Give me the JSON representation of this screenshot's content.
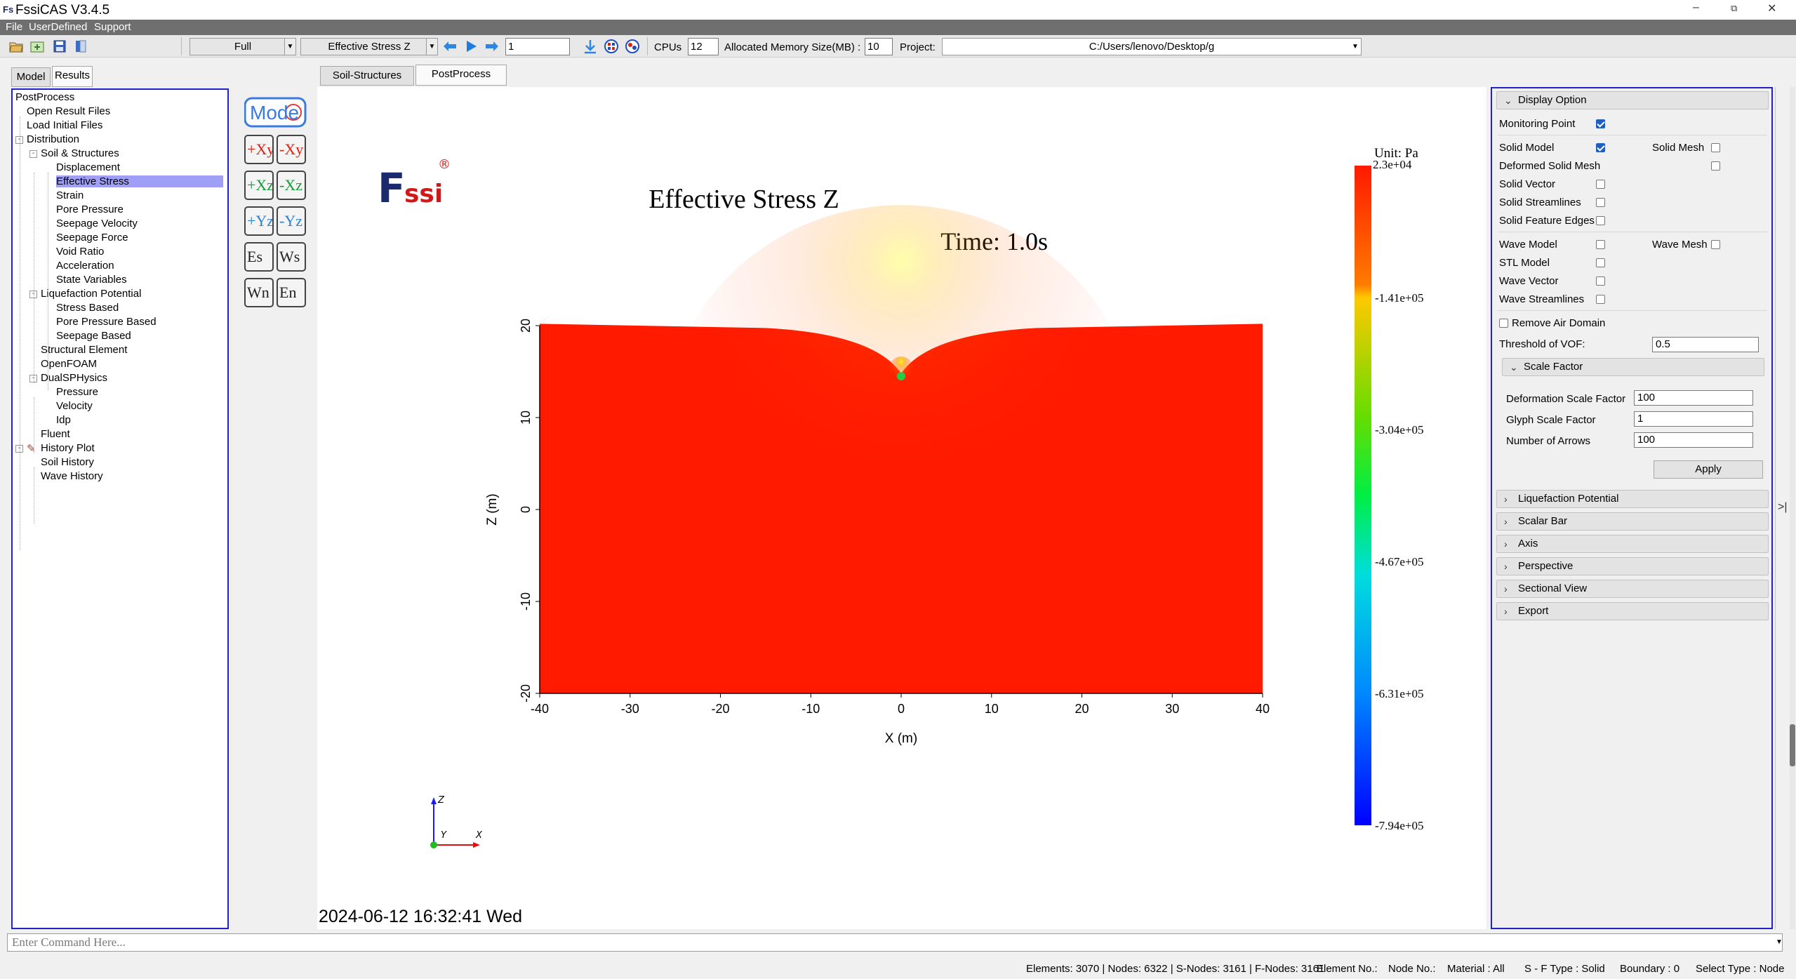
{
  "window": {
    "title": "FssiCAS V3.4.5",
    "app_icon": "Fs"
  },
  "menu": [
    "File",
    "UserDefined",
    "Support"
  ],
  "toolbar": {
    "view_mode": "Full",
    "field": "Effective Stress Z",
    "step": "1",
    "cpus_label": "CPUs",
    "cpus": "12",
    "memory_label": "Allocated Memory Size(MB) :",
    "memory": "10",
    "project_label": "Project:",
    "project_path": "C:/Users/lenovo/Desktop/g"
  },
  "left_tabs": [
    "Model",
    "Results"
  ],
  "main_tabs": [
    "Soil-Structures",
    "PostProcess"
  ],
  "tree": {
    "root": "PostProcess",
    "items": [
      {
        "label": "Open Result Files",
        "level": 1
      },
      {
        "label": "Load Initial Files",
        "level": 1
      },
      {
        "label": "Distribution",
        "level": 1,
        "exp": "-"
      },
      {
        "label": "Soil & Structures",
        "level": 2,
        "exp": "-"
      },
      {
        "label": "Displacement",
        "level": 3
      },
      {
        "label": "Effective Stress",
        "level": 3,
        "selected": true
      },
      {
        "label": "Strain",
        "level": 3
      },
      {
        "label": "Pore Pressure",
        "level": 3
      },
      {
        "label": "Seepage Velocity",
        "level": 3
      },
      {
        "label": "Seepage Force",
        "level": 3
      },
      {
        "label": "Void Ratio",
        "level": 3
      },
      {
        "label": "Acceleration",
        "level": 3
      },
      {
        "label": "State Variables",
        "level": 3
      },
      {
        "label": "Liquefaction Potential",
        "level": 2,
        "exp": "-"
      },
      {
        "label": "Stress Based",
        "level": 3
      },
      {
        "label": "Pore Pressure Based",
        "level": 3
      },
      {
        "label": "Seepage Based",
        "level": 3
      },
      {
        "label": "Structural Element",
        "level": 2
      },
      {
        "label": "OpenFOAM",
        "level": 2
      },
      {
        "label": "DualSPHysics",
        "level": 2,
        "exp": "-"
      },
      {
        "label": "Pressure",
        "level": 3
      },
      {
        "label": "Velocity",
        "level": 3
      },
      {
        "label": "Idp",
        "level": 3
      },
      {
        "label": "Fluent",
        "level": 2
      },
      {
        "label": "History Plot",
        "level": 1,
        "exp": "-",
        "icon": true
      },
      {
        "label": "Soil History",
        "level": 2
      },
      {
        "label": "Wave History",
        "level": 2
      }
    ]
  },
  "view_buttons": {
    "mode": "Mode",
    "grid": [
      [
        "+Xy",
        "-Xy"
      ],
      [
        "+Xz",
        "-Xz"
      ],
      [
        "+Yz",
        "-Yz"
      ],
      [
        "Es",
        "Ws"
      ],
      [
        "Wn",
        "En"
      ]
    ]
  },
  "viewport": {
    "logo": "Fssi",
    "logo_mark": "®",
    "plot_title": "Effective Stress Z",
    "time_label": "Time: 1.0s",
    "timestamp": "2024-06-12 16:32:41 Wed",
    "axis_triad": {
      "z": "Z",
      "y": "Y",
      "x": "X"
    }
  },
  "chart_data": {
    "type": "heatmap",
    "title": "Effective Stress Z",
    "xlabel": "X (m)",
    "ylabel": "Z (m)",
    "xlim": [
      -40,
      40
    ],
    "ylim": [
      -20,
      20
    ],
    "x_ticks": [
      "-40",
      "-30",
      "-20",
      "-10",
      "0",
      "10",
      "20",
      "30",
      "40"
    ],
    "y_ticks": [
      "20",
      "10",
      "0",
      "-10",
      "-20"
    ],
    "colorbar": {
      "unit": "Unit:  Pa",
      "labels": [
        "2.3e+04",
        "-1.41e+05",
        "-3.04e+05",
        "-4.67e+05",
        "-6.31e+05",
        "-7.94e+05"
      ],
      "range": [
        23000,
        -794000
      ]
    }
  },
  "right_panel": {
    "display_option": "Display Option",
    "monitoring_point": {
      "label": "Monitoring Point",
      "checked": true
    },
    "solid_model": {
      "label": "Solid Model",
      "checked": true
    },
    "solid_mesh": {
      "label": "Solid Mesh",
      "checked": false
    },
    "deformed_solid_mesh": {
      "label": "Deformed Solid Mesh",
      "checked": false
    },
    "solid_vector": {
      "label": "Solid Vector",
      "checked": false
    },
    "solid_streamlines": {
      "label": "Solid Streamlines",
      "checked": false
    },
    "solid_feature_edges": {
      "label": "Solid Feature Edges",
      "checked": false
    },
    "wave_model": {
      "label": "Wave Model",
      "checked": false
    },
    "wave_mesh": {
      "label": "Wave Mesh",
      "checked": false
    },
    "stl_model": {
      "label": "STL Model",
      "checked": false
    },
    "wave_vector": {
      "label": "Wave Vector",
      "checked": false
    },
    "wave_streamlines": {
      "label": "Wave Streamlines",
      "checked": false
    },
    "remove_air_domain": {
      "label": "Remove Air Domain",
      "checked": false
    },
    "threshold_label": "Threshold of VOF:",
    "threshold_value": "0.5",
    "scale_factor": "Scale Factor",
    "deformation_label": "Deformation Scale Factor",
    "deformation_value": "100",
    "glyph_label": "Glyph Scale Factor",
    "glyph_value": "1",
    "arrows_label": "Number of Arrows",
    "arrows_value": "100",
    "apply": "Apply",
    "sections": [
      "Liquefaction Potential",
      "Scalar Bar",
      "Axis",
      "Perspective",
      "Sectional View",
      "Export"
    ]
  },
  "command": {
    "placeholder": "Enter Command Here..."
  },
  "status": {
    "elements": "Elements: 3070 | Nodes: 6322 | S-Nodes: 3161 | F-Nodes: 3161",
    "element_no": "Element No.:",
    "node_no": "Node No.:",
    "material": "Material :  All",
    "sf_type": "S - F Type :  Solid",
    "boundary": "Boundary :  0",
    "select_type": "Select Type :  Node"
  }
}
